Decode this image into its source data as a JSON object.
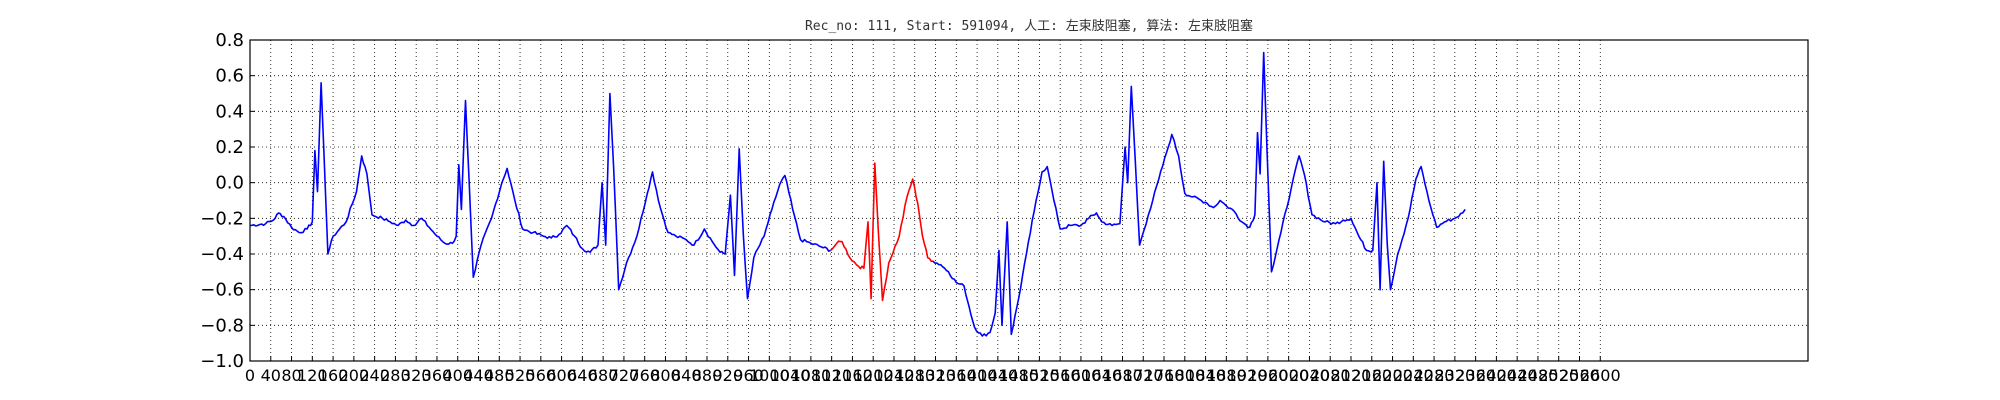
{
  "chart_data": {
    "type": "line",
    "title": "Rec_no: 111, Start: 591094, 人工: 左束肢阻塞, 算法: 左束肢阻塞",
    "xlabel": "",
    "ylabel": "",
    "xlim": [
      0,
      3000
    ],
    "ylim": [
      -1.0,
      0.8
    ],
    "x_ticks": [
      0,
      40,
      80,
      120,
      160,
      200,
      240,
      280,
      320,
      360,
      400,
      440,
      480,
      520,
      560,
      600,
      640,
      680,
      720,
      760,
      800,
      840,
      880,
      920,
      960,
      1000,
      1040,
      1080,
      1120,
      1160,
      1200,
      1240,
      1280,
      1320,
      1360,
      1400,
      1440,
      1480,
      1520,
      1560,
      1600,
      1640,
      1680,
      1720,
      1760,
      1800,
      1840,
      1880,
      1920,
      1960,
      2000,
      2040,
      2080,
      2120,
      2160,
      2200,
      2240,
      2280,
      2320,
      2360,
      2400,
      2440,
      2480,
      2520,
      2560,
      2600
    ],
    "x_tick_labels": [
      "0",
      "40",
      "80",
      "120",
      "160",
      "200",
      "240",
      "280",
      "320",
      "360",
      "400",
      "440",
      "480",
      "520",
      "560",
      "600",
      "640",
      "680",
      "720",
      "760",
      "800",
      "840",
      "880",
      "920",
      "960",
      "1000",
      "1040",
      "1080",
      "1120",
      "1160",
      "1200",
      "1240",
      "1280",
      "1320",
      "1360",
      "1400",
      "1440",
      "1480",
      "1520",
      "1560",
      "1600",
      "1640",
      "1680",
      "1720",
      "1760",
      "1800",
      "1840",
      "1880",
      "1920",
      "1960",
      "2000",
      "2040",
      "2080",
      "2120",
      "2160",
      "2200",
      "2240",
      "2280",
      "2320",
      "2360",
      "2400",
      "2440",
      "2480",
      "2520",
      "2560",
      "2600"
    ],
    "y_ticks": [
      0.8,
      0.6,
      0.4,
      0.2,
      0.0,
      -0.2,
      -0.4,
      -0.6,
      -0.8,
      -1.0
    ],
    "y_tick_labels": [
      "0.8",
      "0.6",
      "0.4",
      "0.2",
      "0.0",
      "−0.2",
      "−0.4",
      "−0.6",
      "−0.8",
      "−1.0"
    ],
    "grid": true,
    "series": [
      {
        "color": "#0000ff",
        "points": [
          [
            0,
            -0.24
          ],
          [
            30,
            -0.23
          ],
          [
            45,
            -0.21
          ],
          [
            55,
            -0.17
          ],
          [
            65,
            -0.19
          ],
          [
            80,
            -0.25
          ],
          [
            95,
            -0.28
          ],
          [
            110,
            -0.26
          ],
          [
            120,
            -0.22
          ],
          [
            125,
            0.18
          ],
          [
            130,
            -0.05
          ],
          [
            137,
            0.56
          ],
          [
            142,
            0.2
          ],
          [
            150,
            -0.4
          ],
          [
            160,
            -0.3
          ],
          [
            185,
            -0.22
          ],
          [
            205,
            -0.05
          ],
          [
            215,
            0.15
          ],
          [
            225,
            0.05
          ],
          [
            235,
            -0.18
          ],
          [
            255,
            -0.2
          ],
          [
            270,
            -0.22
          ],
          [
            285,
            -0.24
          ],
          [
            300,
            -0.21
          ],
          [
            315,
            -0.24
          ],
          [
            330,
            -0.2
          ],
          [
            345,
            -0.25
          ],
          [
            360,
            -0.3
          ],
          [
            375,
            -0.34
          ],
          [
            390,
            -0.34
          ],
          [
            397,
            -0.3
          ],
          [
            402,
            0.1
          ],
          [
            407,
            -0.15
          ],
          [
            415,
            0.46
          ],
          [
            422,
            0.0
          ],
          [
            430,
            -0.53
          ],
          [
            445,
            -0.35
          ],
          [
            465,
            -0.2
          ],
          [
            485,
            0.0
          ],
          [
            495,
            0.08
          ],
          [
            510,
            -0.1
          ],
          [
            525,
            -0.26
          ],
          [
            545,
            -0.28
          ],
          [
            565,
            -0.3
          ],
          [
            580,
            -0.31
          ],
          [
            595,
            -0.29
          ],
          [
            610,
            -0.24
          ],
          [
            625,
            -0.3
          ],
          [
            640,
            -0.37
          ],
          [
            655,
            -0.39
          ],
          [
            670,
            -0.35
          ],
          [
            678,
            0.0
          ],
          [
            685,
            -0.35
          ],
          [
            693,
            0.5
          ],
          [
            700,
            0.1
          ],
          [
            710,
            -0.6
          ],
          [
            725,
            -0.45
          ],
          [
            745,
            -0.3
          ],
          [
            765,
            -0.06
          ],
          [
            775,
            0.06
          ],
          [
            790,
            -0.14
          ],
          [
            805,
            -0.28
          ],
          [
            820,
            -0.3
          ],
          [
            840,
            -0.32
          ],
          [
            855,
            -0.35
          ],
          [
            875,
            -0.26
          ],
          [
            890,
            -0.33
          ],
          [
            905,
            -0.39
          ],
          [
            915,
            -0.4
          ],
          [
            925,
            -0.07
          ],
          [
            933,
            -0.52
          ],
          [
            942,
            0.19
          ],
          [
            950,
            -0.3
          ],
          [
            958,
            -0.65
          ],
          [
            970,
            -0.42
          ],
          [
            990,
            -0.3
          ],
          [
            1005,
            -0.15
          ],
          [
            1020,
            -0.01
          ],
          [
            1030,
            0.04
          ],
          [
            1045,
            -0.15
          ],
          [
            1060,
            -0.32
          ],
          [
            1080,
            -0.34
          ],
          [
            1100,
            -0.36
          ],
          [
            1118,
            -0.38
          ]
        ]
      },
      {
        "color": "#ff0000",
        "points": [
          [
            1118,
            -0.38
          ],
          [
            1130,
            -0.34
          ],
          [
            1140,
            -0.33
          ],
          [
            1155,
            -0.42
          ],
          [
            1172,
            -0.47
          ],
          [
            1182,
            -0.48
          ],
          [
            1190,
            -0.22
          ],
          [
            1196,
            -0.65
          ],
          [
            1203,
            0.11
          ],
          [
            1210,
            -0.28
          ],
          [
            1218,
            -0.66
          ],
          [
            1230,
            -0.45
          ],
          [
            1250,
            -0.3
          ],
          [
            1265,
            -0.08
          ],
          [
            1276,
            0.02
          ],
          [
            1286,
            -0.12
          ],
          [
            1295,
            -0.3
          ],
          [
            1305,
            -0.42
          ],
          [
            1315,
            -0.44
          ]
        ]
      },
      {
        "color": "#0000ff",
        "points": [
          [
            1315,
            -0.44
          ],
          [
            1330,
            -0.46
          ],
          [
            1345,
            -0.5
          ],
          [
            1360,
            -0.56
          ],
          [
            1375,
            -0.58
          ],
          [
            1385,
            -0.7
          ],
          [
            1395,
            -0.81
          ],
          [
            1410,
            -0.86
          ],
          [
            1425,
            -0.84
          ],
          [
            1435,
            -0.73
          ],
          [
            1442,
            -0.38
          ],
          [
            1448,
            -0.8
          ],
          [
            1458,
            -0.22
          ],
          [
            1466,
            -0.85
          ],
          [
            1480,
            -0.65
          ],
          [
            1495,
            -0.4
          ],
          [
            1510,
            -0.16
          ],
          [
            1525,
            0.06
          ],
          [
            1535,
            0.09
          ],
          [
            1548,
            -0.1
          ],
          [
            1560,
            -0.26
          ],
          [
            1580,
            -0.24
          ],
          [
            1600,
            -0.24
          ],
          [
            1615,
            -0.2
          ],
          [
            1630,
            -0.17
          ],
          [
            1640,
            -0.22
          ],
          [
            1660,
            -0.24
          ],
          [
            1675,
            -0.23
          ],
          [
            1685,
            0.2
          ],
          [
            1690,
            0.0
          ],
          [
            1697,
            0.54
          ],
          [
            1705,
            0.1
          ],
          [
            1713,
            -0.35
          ],
          [
            1730,
            -0.18
          ],
          [
            1750,
            0.02
          ],
          [
            1765,
            0.17
          ],
          [
            1775,
            0.27
          ],
          [
            1788,
            0.15
          ],
          [
            1800,
            -0.06
          ],
          [
            1815,
            -0.08
          ],
          [
            1840,
            -0.11
          ],
          [
            1855,
            -0.14
          ],
          [
            1868,
            -0.1
          ],
          [
            1880,
            -0.13
          ],
          [
            1895,
            -0.16
          ],
          [
            1910,
            -0.22
          ],
          [
            1925,
            -0.25
          ],
          [
            1935,
            -0.18
          ],
          [
            1940,
            0.28
          ],
          [
            1945,
            0.05
          ],
          [
            1952,
            0.73
          ],
          [
            1958,
            0.2
          ],
          [
            1967,
            -0.5
          ],
          [
            1985,
            -0.28
          ],
          [
            2005,
            -0.03
          ],
          [
            2020,
            0.15
          ],
          [
            2030,
            0.05
          ],
          [
            2045,
            -0.18
          ],
          [
            2070,
            -0.22
          ],
          [
            2090,
            -0.23
          ],
          [
            2105,
            -0.21
          ],
          [
            2120,
            -0.2
          ],
          [
            2135,
            -0.3
          ],
          [
            2150,
            -0.38
          ],
          [
            2162,
            -0.38
          ],
          [
            2170,
            0.0
          ],
          [
            2176,
            -0.6
          ],
          [
            2183,
            0.12
          ],
          [
            2190,
            -0.35
          ],
          [
            2196,
            -0.6
          ],
          [
            2210,
            -0.4
          ],
          [
            2230,
            -0.2
          ],
          [
            2245,
            0.02
          ],
          [
            2255,
            0.09
          ],
          [
            2270,
            -0.1
          ],
          [
            2285,
            -0.25
          ],
          [
            2300,
            -0.22
          ],
          [
            2320,
            -0.2
          ],
          [
            2335,
            -0.17
          ],
          [
            2340,
            -0.15
          ]
        ]
      }
    ]
  }
}
